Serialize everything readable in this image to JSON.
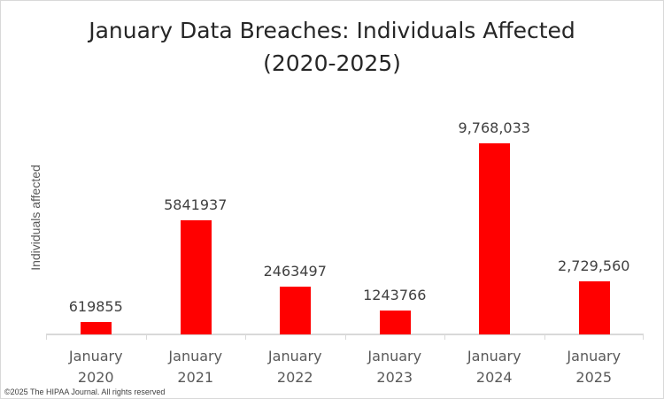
{
  "chart_data": {
    "type": "bar",
    "title": "January Data Breaches: Individuals Affected (2020-2025)",
    "title_lines": [
      "January Data Breaches: Individuals Affected",
      "(2020-2025)"
    ],
    "xlabel": "",
    "ylabel": "Individuals affected",
    "categories": [
      "January 2020",
      "January 2021",
      "January 2022",
      "January 2023",
      "January 2024",
      "January 2025"
    ],
    "category_lines": [
      [
        "January",
        "2020"
      ],
      [
        "January",
        "2021"
      ],
      [
        "January",
        "2022"
      ],
      [
        "January",
        "2023"
      ],
      [
        "January",
        "2024"
      ],
      [
        "January",
        "2025"
      ]
    ],
    "values": [
      619855,
      5841937,
      2463497,
      1243766,
      9768033,
      2729560
    ],
    "data_labels": [
      "619855",
      "5841937",
      "2463497",
      "1243766",
      "9,768,033",
      "2,729,560"
    ],
    "ylim": [
      0,
      12500000
    ],
    "grid": false,
    "legend": null,
    "bar_color": "#ff0000"
  },
  "footer": {
    "copyright": "©2025 The HIPAA Journal. All rights reserved"
  }
}
